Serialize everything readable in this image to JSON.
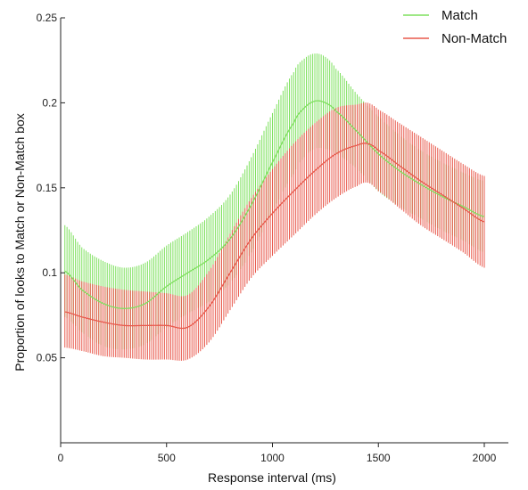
{
  "chart_data": {
    "type": "line",
    "xlabel": "Response interval (ms)",
    "ylabel": "Proportion of looks to Match or Non-Match box",
    "xlim": [
      0,
      2100
    ],
    "ylim": [
      0,
      0.25
    ],
    "x_ticks": [
      0,
      500,
      1000,
      1500,
      2000
    ],
    "y_ticks": [
      0.05,
      0.1,
      0.15,
      0.2,
      0.25
    ],
    "x_tick_labels": [
      "0",
      "500",
      "1000",
      "1500",
      "2000"
    ],
    "y_tick_labels": [
      "0.05",
      "0.1",
      "0.15",
      "0.2",
      "0.25"
    ],
    "grid": false,
    "legend_position": "top-right",
    "error_bars": true,
    "series": [
      {
        "name": "Match",
        "color": "#7ee05e",
        "x": [
          20,
          100,
          200,
          300,
          400,
          500,
          600,
          700,
          800,
          900,
          1000,
          1100,
          1150,
          1200,
          1250,
          1300,
          1400,
          1500,
          1600,
          1700,
          1800,
          1900,
          2000
        ],
        "y": [
          0.101,
          0.09,
          0.082,
          0.079,
          0.082,
          0.092,
          0.1,
          0.108,
          0.12,
          0.14,
          0.165,
          0.188,
          0.197,
          0.201,
          0.2,
          0.195,
          0.183,
          0.17,
          0.16,
          0.152,
          0.145,
          0.139,
          0.133
        ],
        "upper": [
          0.128,
          0.115,
          0.107,
          0.103,
          0.106,
          0.116,
          0.124,
          0.133,
          0.146,
          0.168,
          0.194,
          0.218,
          0.226,
          0.229,
          0.227,
          0.22,
          0.205,
          0.192,
          0.181,
          0.172,
          0.165,
          0.159,
          0.154
        ],
        "lower": [
          0.074,
          0.065,
          0.057,
          0.055,
          0.058,
          0.068,
          0.076,
          0.083,
          0.094,
          0.112,
          0.136,
          0.158,
          0.168,
          0.173,
          0.173,
          0.17,
          0.161,
          0.148,
          0.139,
          0.132,
          0.125,
          0.119,
          0.112
        ]
      },
      {
        "name": "Non-Match",
        "color": "#e8594c",
        "x": [
          20,
          100,
          200,
          300,
          400,
          500,
          600,
          700,
          800,
          900,
          1000,
          1100,
          1200,
          1300,
          1400,
          1450,
          1500,
          1600,
          1700,
          1800,
          1900,
          2000
        ],
        "y": [
          0.077,
          0.074,
          0.071,
          0.069,
          0.069,
          0.069,
          0.068,
          0.08,
          0.1,
          0.12,
          0.135,
          0.148,
          0.16,
          0.17,
          0.175,
          0.176,
          0.172,
          0.163,
          0.154,
          0.146,
          0.138,
          0.13
        ],
        "upper": [
          0.099,
          0.095,
          0.092,
          0.09,
          0.089,
          0.088,
          0.087,
          0.101,
          0.123,
          0.144,
          0.161,
          0.176,
          0.188,
          0.197,
          0.199,
          0.2,
          0.196,
          0.188,
          0.18,
          0.172,
          0.164,
          0.157
        ],
        "lower": [
          0.056,
          0.054,
          0.051,
          0.05,
          0.049,
          0.049,
          0.049,
          0.059,
          0.078,
          0.097,
          0.11,
          0.122,
          0.134,
          0.144,
          0.151,
          0.153,
          0.148,
          0.138,
          0.128,
          0.12,
          0.112,
          0.103
        ]
      }
    ]
  }
}
